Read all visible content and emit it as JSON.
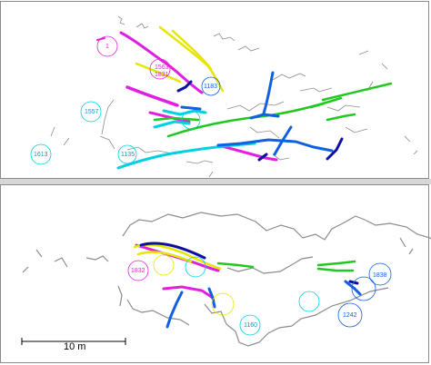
{
  "colors": {
    "wall": "#8c8c8c",
    "magenta": "#e020e0",
    "yellow": "#e6e600",
    "green": "#20c820",
    "cyan": "#00d0e0",
    "blue": "#1060e0",
    "navy": "#1010a0",
    "frame": "#8a8a8a"
  },
  "top_panel": {
    "labels": [
      "1",
      "1563",
      "1831",
      "1557",
      "1613",
      "1135",
      "1183"
    ]
  },
  "bottom_panel": {
    "labels": [
      "1832",
      "1838",
      "1242",
      "1160"
    ]
  },
  "scale_bar": {
    "label": "10 m"
  }
}
